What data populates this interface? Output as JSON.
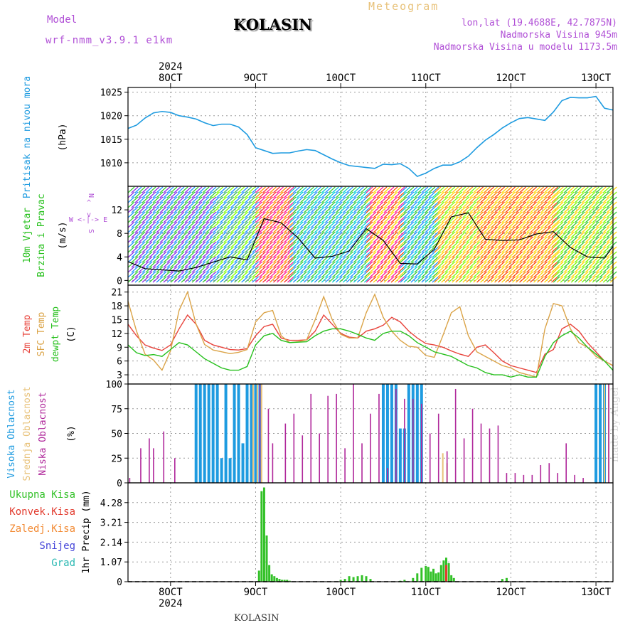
{
  "header": {
    "model_label": "Model",
    "model_name": "wrf-nmm_v3.9.1 e1km",
    "station": "KOLASIN",
    "product": "Meteogram",
    "coords": "lon,lat (19.4688E, 42.7875N)",
    "elevation": "Nadmorska Visina 945m",
    "model_elevation": "Nadmorska Visina u modelu 1173.5m"
  },
  "footer": {
    "station": "KOLASIN",
    "credit": "made by Angel"
  },
  "time_axis": {
    "labels": [
      "8OCT",
      "9OCT",
      "10OCT",
      "11OCT",
      "12OCT",
      "13OCT"
    ],
    "year": "2024",
    "range_days": [
      -0.5,
      5.2
    ]
  },
  "colors": {
    "pressure": "#1e9be0",
    "temp2m": "#e8433b",
    "sfc": "#dba448",
    "dewpt": "#26c01c",
    "high_cloud": "#1e9be0",
    "mid_cloud": "#e8c27a",
    "low_cloud": "#b0289b",
    "total_precip": "#33c128",
    "convective": "#e23b2e",
    "frozen": "#f28a33",
    "snow": "#4545d9",
    "graupel": "#2ab8b2"
  },
  "chart_data": [
    {
      "type": "line",
      "title": "Pritisak na nivou mora",
      "ylabel": "(hPa)",
      "ylim": [
        1005,
        1026
      ],
      "yticks": [
        1010,
        1015,
        1020,
        1025
      ],
      "grid": true,
      "series": [
        {
          "x": [
            -0.5,
            -0.4,
            -0.3,
            -0.2,
            -0.1,
            0,
            0.1,
            0.2,
            0.3,
            0.4,
            0.5,
            0.6,
            0.7,
            0.8,
            0.9,
            1,
            1.1,
            1.2,
            1.3,
            1.4,
            1.5,
            1.6,
            1.7,
            1.8,
            1.9,
            2,
            2.1,
            2.2,
            2.3,
            2.4,
            2.5,
            2.6,
            2.7,
            2.8,
            2.9,
            3,
            3.1,
            3.2,
            3.3,
            3.4,
            3.5,
            3.6,
            3.7,
            3.8,
            3.9,
            4,
            4.1,
            4.2,
            4.3,
            4.4,
            4.5,
            4.6,
            4.7,
            4.8,
            4.9,
            5,
            5.1,
            5.2
          ],
          "values": [
            1017.3,
            1018,
            1019.5,
            1020.6,
            1020.9,
            1020.7,
            1020,
            1019.7,
            1019.3,
            1018.5,
            1017.9,
            1018.2,
            1018.2,
            1017.6,
            1016,
            1013.2,
            1012.6,
            1012,
            1012.1,
            1012.1,
            1012.5,
            1012.8,
            1012.6,
            1011.7,
            1010.8,
            1010,
            1009.4,
            1009.2,
            1009,
            1008.8,
            1009.7,
            1009.6,
            1009.8,
            1008.8,
            1007.1,
            1007.8,
            1008.8,
            1009.5,
            1009.5,
            1010.2,
            1011.4,
            1013.2,
            1014.8,
            1016,
            1017.4,
            1018.5,
            1019.4,
            1019.6,
            1019.3,
            1019,
            1020.8,
            1023.2,
            1023.9,
            1023.8,
            1023.8,
            1024.1,
            1021.6,
            1021.2
          ]
        }
      ]
    },
    {
      "type": "line",
      "title": "10m Vjetar Brzina i Pravac",
      "ylabel": "(m/s)",
      "ylim": [
        -0.8,
        16
      ],
      "yticks": [
        0,
        4,
        8,
        12
      ],
      "grid": true,
      "legend_glyph": [
        "N",
        "^",
        "W <-|-> E",
        "v",
        "S"
      ],
      "series": [
        {
          "name": "brzina",
          "x": [
            -0.5,
            -0.3,
            -0.1,
            0.1,
            0.3,
            0.5,
            0.7,
            0.9,
            1.1,
            1.3,
            1.5,
            1.7,
            1.9,
            2.1,
            2.3,
            2.5,
            2.7,
            2.9,
            3.1,
            3.3,
            3.5,
            3.7,
            3.9,
            4.1,
            4.3,
            4.5,
            4.7,
            4.9,
            5.1,
            5.2
          ],
          "values": [
            3.2,
            2.0,
            1.8,
            1.6,
            2.2,
            3.1,
            4.0,
            3.5,
            10.5,
            9.8,
            7.2,
            3.8,
            4.1,
            5.0,
            8.8,
            6.8,
            2.9,
            2.8,
            5.3,
            10.8,
            11.5,
            7.0,
            6.8,
            6.9,
            7.9,
            8.3,
            5.6,
            4.0,
            3.8,
            5.8
          ]
        }
      ]
    },
    {
      "type": "line",
      "ylabel": "(C)",
      "ylim": [
        1,
        22.5
      ],
      "yticks": [
        3,
        6,
        9,
        12,
        15,
        18,
        21
      ],
      "grid": true,
      "series": [
        {
          "name": "2m Temp",
          "x": [
            -0.5,
            -0.4,
            -0.3,
            -0.2,
            -0.1,
            0,
            0.1,
            0.2,
            0.3,
            0.4,
            0.5,
            0.6,
            0.7,
            0.8,
            0.9,
            1,
            1.1,
            1.2,
            1.3,
            1.4,
            1.5,
            1.6,
            1.7,
            1.8,
            1.9,
            2,
            2.1,
            2.2,
            2.3,
            2.4,
            2.5,
            2.6,
            2.7,
            2.8,
            2.9,
            3,
            3.1,
            3.2,
            3.3,
            3.4,
            3.5,
            3.6,
            3.7,
            3.8,
            3.9,
            4,
            4.1,
            4.2,
            4.3,
            4.4,
            4.5,
            4.6,
            4.7,
            4.8,
            4.9,
            5,
            5.1,
            5.2
          ],
          "values": [
            14,
            11.5,
            9.5,
            8.8,
            8.3,
            9.5,
            13,
            16,
            14,
            10.5,
            9.5,
            9,
            8.5,
            8.4,
            8.7,
            11.5,
            13.5,
            14,
            11,
            10.5,
            10.5,
            10.6,
            12.5,
            16,
            14,
            12,
            11.2,
            11,
            12.5,
            13,
            13.8,
            15.5,
            14.5,
            12.5,
            11,
            9.8,
            9.5,
            9,
            8.2,
            7.5,
            7,
            9,
            9.5,
            7.8,
            6,
            5,
            4.5,
            4,
            3.5,
            7.5,
            8.5,
            13,
            14,
            12.5,
            10,
            8,
            6,
            5
          ]
        },
        {
          "name": "SFC Temp",
          "x": [
            -0.5,
            -0.4,
            -0.3,
            -0.2,
            -0.1,
            0,
            0.1,
            0.2,
            0.3,
            0.4,
            0.5,
            0.6,
            0.7,
            0.8,
            0.9,
            1,
            1.1,
            1.2,
            1.3,
            1.4,
            1.5,
            1.6,
            1.7,
            1.8,
            1.9,
            2,
            2.1,
            2.2,
            2.3,
            2.4,
            2.5,
            2.6,
            2.7,
            2.8,
            2.9,
            3,
            3.1,
            3.2,
            3.3,
            3.4,
            3.5,
            3.6,
            3.7,
            3.8,
            3.9,
            4,
            4.1,
            4.2,
            4.3,
            4.4,
            4.5,
            4.6,
            4.7,
            4.8,
            4.9,
            5,
            5.1,
            5.2
          ],
          "values": [
            19,
            12.5,
            7.5,
            6.2,
            4,
            8.2,
            17,
            21,
            14,
            9.6,
            8.4,
            8,
            7.6,
            7.9,
            8.5,
            14.5,
            16.5,
            17,
            11.5,
            10,
            10.2,
            10.6,
            15,
            20,
            15,
            11.8,
            11,
            11,
            16.5,
            20.5,
            15.5,
            12.5,
            10.5,
            9.2,
            9,
            7.2,
            6.8,
            11.5,
            16.5,
            17.8,
            11.5,
            8,
            7,
            6,
            5,
            4.5,
            3.5,
            3,
            2.5,
            13,
            18.5,
            18,
            13,
            10,
            9,
            7,
            6,
            5
          ]
        },
        {
          "name": "dewpt Temp",
          "x": [
            -0.5,
            -0.4,
            -0.3,
            -0.2,
            -0.1,
            0,
            0.1,
            0.2,
            0.3,
            0.4,
            0.5,
            0.6,
            0.7,
            0.8,
            0.9,
            1,
            1.1,
            1.2,
            1.3,
            1.4,
            1.5,
            1.6,
            1.7,
            1.8,
            1.9,
            2,
            2.1,
            2.2,
            2.3,
            2.4,
            2.5,
            2.6,
            2.7,
            2.8,
            2.9,
            3,
            3.1,
            3.2,
            3.3,
            3.4,
            3.5,
            3.6,
            3.7,
            3.8,
            3.9,
            4,
            4.1,
            4.2,
            4.3,
            4.4,
            4.5,
            4.6,
            4.7,
            4.8,
            4.9,
            5,
            5.1,
            5.2
          ],
          "values": [
            9.5,
            7.8,
            7.2,
            7.4,
            7,
            8.5,
            10,
            9.5,
            8,
            6.5,
            5.5,
            4.5,
            4,
            4,
            4.8,
            9.5,
            11.5,
            12,
            10.5,
            10,
            10.1,
            10.2,
            11.5,
            12.5,
            13,
            13,
            12.5,
            11.8,
            11,
            10.5,
            12,
            12.5,
            12.5,
            11.5,
            10,
            9,
            8,
            7.5,
            7,
            6,
            5,
            4.5,
            3.5,
            3,
            3,
            2.5,
            3,
            2.5,
            2.5,
            7,
            10,
            11.5,
            12.5,
            11,
            9,
            7.5,
            6,
            4
          ]
        }
      ]
    },
    {
      "type": "bar",
      "ylabel": "(%)",
      "ylim": [
        0,
        100
      ],
      "yticks": [
        0,
        25,
        50,
        75,
        100
      ],
      "grid": true,
      "series": [
        {
          "name": "Visoka Oblacnost",
          "x": [
            0.3,
            0.35,
            0.4,
            0.45,
            0.5,
            0.55,
            0.6,
            0.65,
            0.7,
            0.75,
            0.8,
            0.85,
            0.9,
            0.95,
            1.0,
            1.05,
            2.5,
            2.55,
            2.6,
            2.65,
            2.7,
            2.75,
            2.8,
            2.85,
            2.9,
            2.95,
            5.0,
            5.05,
            5.1
          ],
          "values": [
            100,
            100,
            100,
            100,
            100,
            100,
            25,
            100,
            25,
            100,
            100,
            40,
            100,
            100,
            100,
            100,
            100,
            100,
            100,
            100,
            55,
            55,
            100,
            100,
            100,
            100,
            100,
            100,
            100
          ]
        },
        {
          "name": "Srednja Oblacnost",
          "x": [
            0.97,
            1.02,
            1.07,
            3.2,
            3.25,
            5.1,
            5.15
          ],
          "values": [
            100,
            100,
            100,
            30,
            20,
            100,
            100
          ]
        },
        {
          "name": "Niska Oblacnost",
          "x": [
            -0.48,
            -0.35,
            -0.25,
            -0.2,
            -0.08,
            0.05,
            1.05,
            1.15,
            1.2,
            1.35,
            1.45,
            1.55,
            1.65,
            1.75,
            1.85,
            1.95,
            2.05,
            2.15,
            2.25,
            2.35,
            2.45,
            2.55,
            2.65,
            2.75,
            2.85,
            2.95,
            3.05,
            3.15,
            3.25,
            3.35,
            3.45,
            3.55,
            3.65,
            3.75,
            3.85,
            3.95,
            4.05,
            4.15,
            4.25,
            4.35,
            4.45,
            4.55,
            4.65,
            4.75,
            4.85,
            5.15
          ],
          "values": [
            5,
            35,
            45,
            35,
            52,
            25,
            100,
            75,
            40,
            60,
            70,
            48,
            90,
            50,
            88,
            90,
            35,
            100,
            40,
            70,
            90,
            15,
            95,
            85,
            85,
            80,
            50,
            70,
            32,
            95,
            45,
            75,
            60,
            55,
            58,
            10,
            10,
            8,
            8,
            18,
            20,
            10,
            40,
            8,
            5,
            100
          ]
        }
      ]
    },
    {
      "type": "bar",
      "ylabel": "1hr Precip (mm)",
      "ylim": [
        0,
        5.35
      ],
      "yticks": [
        0,
        1.07,
        2.14,
        3.21,
        4.28
      ],
      "grid": true,
      "series": [
        {
          "name": "Ukupna Kisa",
          "x": [
            1.04,
            1.07,
            1.1,
            1.13,
            1.16,
            1.19,
            1.22,
            1.25,
            1.28,
            1.31,
            1.34,
            1.37,
            1.4,
            2.0,
            2.05,
            2.1,
            2.15,
            2.2,
            2.25,
            2.3,
            2.35,
            2.7,
            2.75,
            2.85,
            2.9,
            2.95,
            3.0,
            3.03,
            3.06,
            3.09,
            3.12,
            3.15,
            3.18,
            3.21,
            3.24,
            3.27,
            3.3,
            3.33,
            3.9,
            3.95
          ],
          "values": [
            0.6,
            4.9,
            5.1,
            2.5,
            0.9,
            0.4,
            0.3,
            0.2,
            0.15,
            0.1,
            0.1,
            0.1,
            0.05,
            0.1,
            0.15,
            0.3,
            0.25,
            0.3,
            0.35,
            0.3,
            0.15,
            0.05,
            0.1,
            0.2,
            0.45,
            0.75,
            0.85,
            0.8,
            0.55,
            0.7,
            0.45,
            0.5,
            0.9,
            1.15,
            1.3,
            1.0,
            0.35,
            0.2,
            0.15,
            0.2
          ]
        },
        {
          "name": "Konvek.Kisa",
          "x": [
            3.24
          ],
          "values": [
            0.9
          ]
        },
        {
          "name": "Zaledj.Kisa",
          "x": [],
          "values": []
        },
        {
          "name": "Snijeg",
          "x": [],
          "values": []
        },
        {
          "name": "Grad",
          "x": [],
          "values": []
        }
      ]
    }
  ]
}
